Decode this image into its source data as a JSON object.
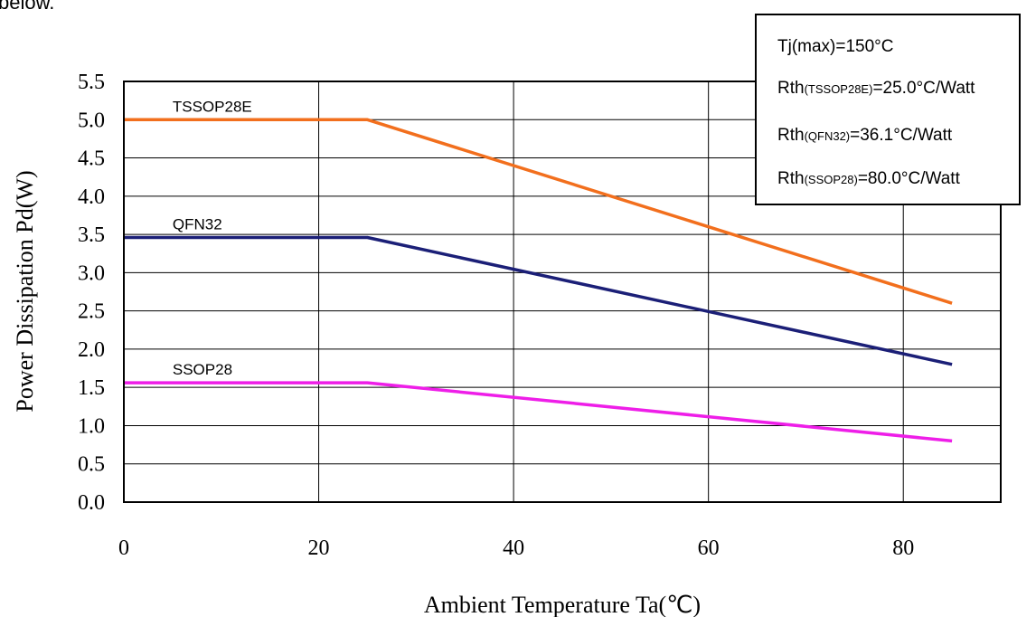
{
  "header_fragment": "below.",
  "chart_data": {
    "type": "line",
    "xlabel": "Ambient Temperature Ta(℃)",
    "ylabel": "Power Dissipation Pd(W)",
    "xlim": [
      0,
      90
    ],
    "ylim": [
      0,
      5.5
    ],
    "x_ticks": [
      0,
      20,
      40,
      60,
      80
    ],
    "x_tick_labels": [
      "0",
      "20",
      "40",
      "60",
      "80"
    ],
    "y_ticks": [
      0,
      0.5,
      1.0,
      1.5,
      2.0,
      2.5,
      3.0,
      3.5,
      4.0,
      4.5,
      5.0,
      5.5
    ],
    "y_tick_labels": [
      "0.0",
      "0.5",
      "1.0",
      "1.5",
      "2.0",
      "2.5",
      "3.0",
      "3.5",
      "4.0",
      "4.5",
      "5.0",
      "5.5"
    ],
    "grid": true,
    "series": [
      {
        "name": "TSSOP28E",
        "color": "#f26f1d",
        "label_at": [
          5,
          5.0
        ],
        "points": [
          [
            0,
            5.0
          ],
          [
            25,
            5.0
          ],
          [
            85,
            2.6
          ]
        ]
      },
      {
        "name": "QFN32",
        "color": "#1b1f77",
        "label_at": [
          5,
          3.46
        ],
        "points": [
          [
            0,
            3.46
          ],
          [
            25,
            3.46
          ],
          [
            85,
            1.8
          ]
        ]
      },
      {
        "name": "SSOP28",
        "color": "#ee1ee8",
        "label_at": [
          5,
          1.56
        ],
        "points": [
          [
            0,
            1.56
          ],
          [
            25,
            1.56
          ],
          [
            85,
            0.8
          ]
        ]
      }
    ],
    "info_box": {
      "lines": [
        {
          "main": "Tj(max)=150°C",
          "sub": "",
          "tail": ""
        },
        {
          "main": "Rth",
          "sub": "(TSSOP28E)",
          "tail": "=25.0°C/Watt"
        },
        {
          "main": "Rth",
          "sub": "(QFN32)",
          "tail": "=36.1°C/Watt"
        },
        {
          "main": "Rth",
          "sub": "(SSOP28)",
          "tail": "=80.0°C/Watt"
        }
      ]
    }
  }
}
